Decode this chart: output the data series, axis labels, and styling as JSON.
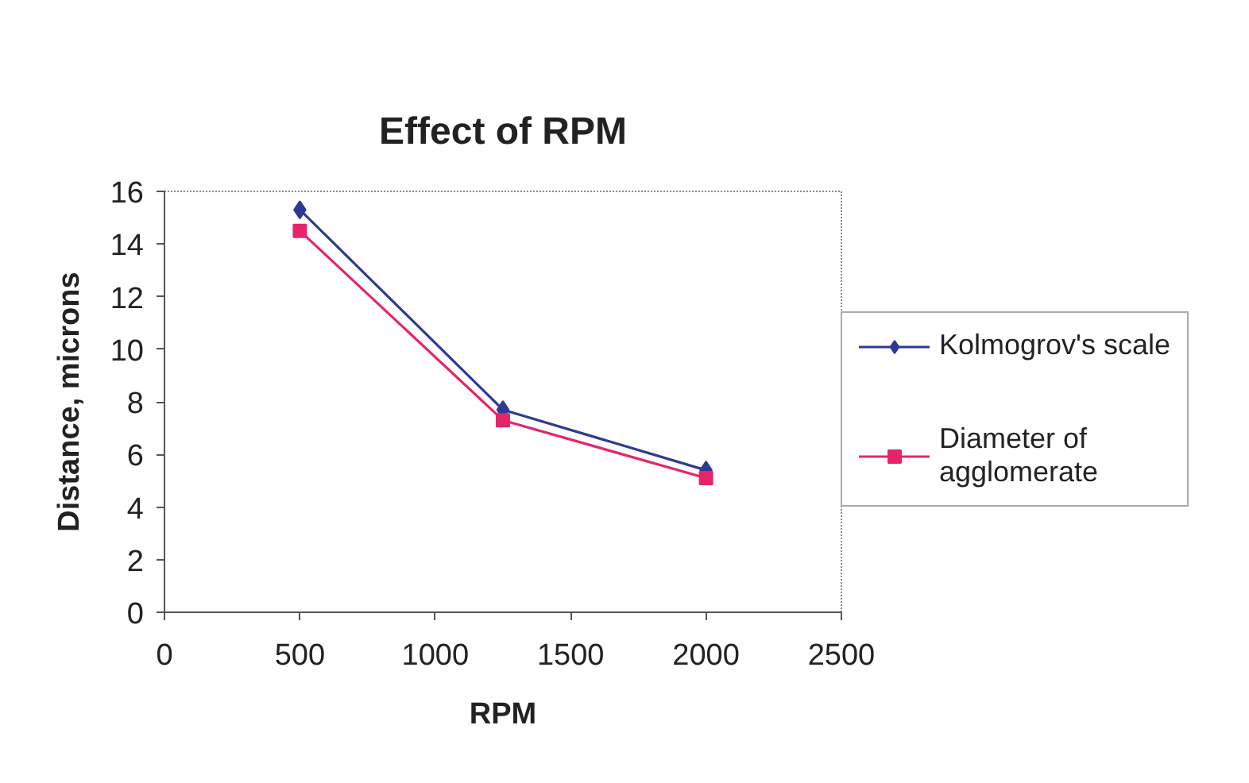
{
  "chart_data": {
    "type": "line",
    "title": "Effect of RPM",
    "xlabel": "RPM",
    "ylabel": "Distance, microns",
    "xlim": [
      0,
      2500
    ],
    "xticks": [
      0,
      500,
      1000,
      1500,
      2000,
      2500
    ],
    "ylim": [
      0,
      16
    ],
    "yticks": [
      0,
      2,
      4,
      6,
      8,
      10,
      12,
      14,
      16
    ],
    "x": [
      500,
      1250,
      2000
    ],
    "series": [
      {
        "name": "Kolmogrov's scale",
        "color": "#2e3a92",
        "marker": "diamond",
        "values": [
          15.3,
          7.7,
          5.4
        ]
      },
      {
        "name": "Diameter of agglomerate",
        "color": "#e6246a",
        "marker": "square",
        "values": [
          14.5,
          7.3,
          5.1
        ]
      }
    ],
    "grid": false,
    "legend": "right",
    "line_style": "solid"
  }
}
